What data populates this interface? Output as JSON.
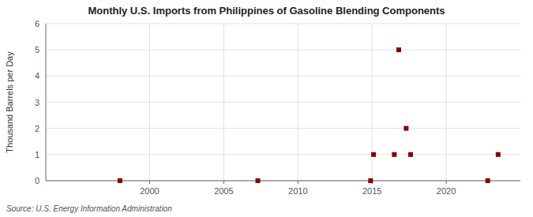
{
  "chart_data": {
    "type": "scatter",
    "title": "Monthly U.S. Imports from Philippines of Gasoline Blending Components",
    "ylabel": "Thousand Barrels per Day",
    "source": "Source: U.S. Energy Information Administration",
    "x": [
      1998.0,
      2007.3,
      2014.9,
      2015.1,
      2016.5,
      2016.8,
      2017.3,
      2017.6,
      2022.8,
      2023.5
    ],
    "values": [
      0.0,
      0.0,
      0.0,
      1.0,
      1.0,
      5.0,
      2.0,
      1.0,
      0.0,
      1.0
    ],
    "xlim": [
      1993,
      2025
    ],
    "ylim": [
      0,
      6
    ],
    "xticks": [
      2000,
      2005,
      2010,
      2015,
      2020
    ],
    "yticks": [
      0,
      1,
      2,
      3,
      4,
      5,
      6
    ],
    "grid": true,
    "color": "#8b0000",
    "marker": "square"
  }
}
